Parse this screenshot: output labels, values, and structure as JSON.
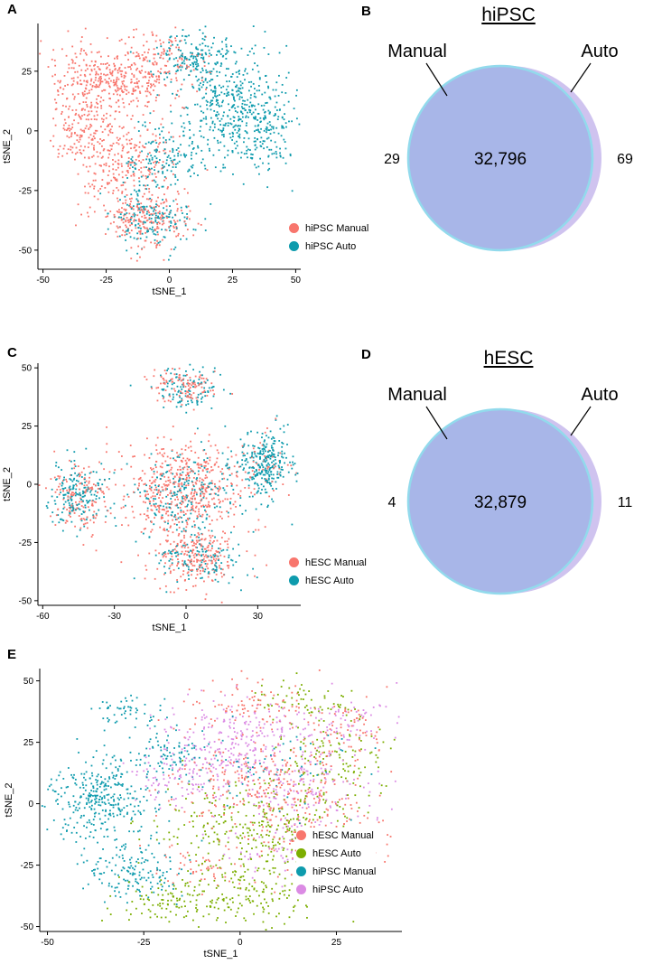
{
  "panels": {
    "a": {
      "label": "A"
    },
    "b": {
      "label": "B",
      "title": "hiPSC",
      "left_label": "Manual",
      "right_label": "Auto",
      "left_value": "29",
      "center_value": "32,796",
      "right_value": "69",
      "colors": {
        "front": "#A8B6E8",
        "front_stroke": "#92DAEC",
        "back": "#CFC3EF"
      }
    },
    "c": {
      "label": "C"
    },
    "d": {
      "label": "D",
      "title": "hESC",
      "left_label": "Manual",
      "right_label": "Auto",
      "left_value": "4",
      "center_value": "32,879",
      "right_value": "11",
      "colors": {
        "front": "#A8B6E8",
        "front_stroke": "#92DAEC",
        "back": "#CFC3EF"
      }
    },
    "e": {
      "label": "E"
    }
  },
  "chart_data": [
    {
      "panel": "A",
      "type": "scatter",
      "xlabel": "tSNE_1",
      "ylabel": "tSNE_2",
      "xlim": [
        -52,
        52
      ],
      "ylim": [
        -58,
        45
      ],
      "xticks": [
        -50,
        -25,
        0,
        25,
        50
      ],
      "yticks": [
        -50,
        -25,
        0,
        25
      ],
      "seed": 7,
      "legend_position": "right-bottom",
      "series": [
        {
          "name": "hiPSC Manual",
          "color": "#F8766D",
          "clusters": [
            {
              "cx": -20,
              "cy": 23,
              "sx": 12,
              "sy": 8,
              "n": 420
            },
            {
              "cx": -34,
              "cy": 2,
              "sx": 6,
              "sy": 8,
              "n": 200
            },
            {
              "cx": -12,
              "cy": -10,
              "sx": 8,
              "sy": 7,
              "n": 150
            },
            {
              "cx": -9,
              "cy": -36,
              "sx": 9,
              "sy": 6,
              "n": 240
            },
            {
              "cx": 2,
              "cy": 30,
              "sx": 7,
              "sy": 5,
              "n": 60
            },
            {
              "cx": -25,
              "cy": -20,
              "sx": 5,
              "sy": 5,
              "n": 60
            }
          ]
        },
        {
          "name": "hiPSC Auto",
          "color": "#0E9BAD",
          "clusters": [
            {
              "cx": 26,
              "cy": 10,
              "sx": 12,
              "sy": 11,
              "n": 500
            },
            {
              "cx": 9,
              "cy": 31,
              "sx": 8,
              "sy": 5,
              "n": 150
            },
            {
              "cx": -2,
              "cy": -12,
              "sx": 8,
              "sy": 7,
              "n": 140
            },
            {
              "cx": -6,
              "cy": -38,
              "sx": 9,
              "sy": 6,
              "n": 160
            },
            {
              "cx": 39,
              "cy": -5,
              "sx": 5,
              "sy": 7,
              "n": 70
            }
          ]
        }
      ]
    },
    {
      "panel": "B",
      "type": "venn",
      "title": "hiPSC",
      "sets": [
        "Manual",
        "Auto"
      ],
      "left_only": 29,
      "intersection": 32796,
      "right_only": 69
    },
    {
      "panel": "C",
      "type": "scatter",
      "xlabel": "tSNE_1",
      "ylabel": "tSNE_2",
      "xlim": [
        -62,
        48
      ],
      "ylim": [
        -52,
        52
      ],
      "xticks": [
        -60,
        -30,
        0,
        30
      ],
      "yticks": [
        -50,
        -25,
        0,
        25,
        50
      ],
      "seed": 13,
      "legend_position": "right-bottom",
      "series": [
        {
          "name": "hESC Manual",
          "color": "#F8766D",
          "clusters": [
            {
              "cx": -3,
              "cy": -2,
              "sx": 13,
              "sy": 10,
              "n": 500
            },
            {
              "cx": -44,
              "cy": -6,
              "sx": 6,
              "sy": 7,
              "n": 150
            },
            {
              "cx": -1,
              "cy": 42,
              "sx": 7,
              "sy": 4,
              "n": 110
            },
            {
              "cx": 5,
              "cy": -31,
              "sx": 10,
              "sy": 7,
              "n": 240
            },
            {
              "cx": 33,
              "cy": 8,
              "sx": 6,
              "sy": 6,
              "n": 50
            }
          ]
        },
        {
          "name": "hESC Auto",
          "color": "#0E9BAD",
          "clusters": [
            {
              "cx": 34,
              "cy": 9,
              "sx": 6,
              "sy": 7,
              "n": 280
            },
            {
              "cx": -46,
              "cy": -4,
              "sx": 6,
              "sy": 7,
              "n": 180
            },
            {
              "cx": 0,
              "cy": 41,
              "sx": 8,
              "sy": 5,
              "n": 110
            },
            {
              "cx": -1,
              "cy": -4,
              "sx": 12,
              "sy": 9,
              "n": 220
            },
            {
              "cx": 7,
              "cy": -33,
              "sx": 9,
              "sy": 6,
              "n": 130
            }
          ]
        }
      ]
    },
    {
      "panel": "D",
      "type": "venn",
      "title": "hESC",
      "sets": [
        "Manual",
        "Auto"
      ],
      "left_only": 4,
      "intersection": 32879,
      "right_only": 11
    },
    {
      "panel": "E",
      "type": "scatter",
      "xlabel": "tSNE_1",
      "ylabel": "tSNE_2",
      "xlim": [
        -52,
        42
      ],
      "ylim": [
        -52,
        55
      ],
      "xticks": [
        -50,
        -25,
        0,
        25
      ],
      "yticks": [
        -50,
        -25,
        0,
        25,
        50
      ],
      "seed": 21,
      "legend_position": "right-bottom",
      "series": [
        {
          "name": "hESC Manual",
          "color": "#F8766D",
          "clusters": [
            {
              "cx": 6,
              "cy": 8,
              "sx": 13,
              "sy": 10,
              "n": 260
            },
            {
              "cx": 22,
              "cy": -12,
              "sx": 9,
              "sy": 8,
              "n": 130
            },
            {
              "cx": 2,
              "cy": 40,
              "sx": 10,
              "sy": 6,
              "n": 90
            },
            {
              "cx": 28,
              "cy": 30,
              "sx": 7,
              "sy": 6,
              "n": 70
            },
            {
              "cx": -8,
              "cy": -25,
              "sx": 8,
              "sy": 6,
              "n": 70
            }
          ]
        },
        {
          "name": "hESC Auto",
          "color": "#7CAE00",
          "clusters": [
            {
              "cx": 4,
              "cy": -8,
              "sx": 13,
              "sy": 9,
              "n": 280
            },
            {
              "cx": -2,
              "cy": -36,
              "sx": 11,
              "sy": 7,
              "n": 200
            },
            {
              "cx": 24,
              "cy": 18,
              "sx": 8,
              "sy": 8,
              "n": 110
            },
            {
              "cx": 16,
              "cy": 42,
              "sx": 7,
              "sy": 4,
              "n": 60
            },
            {
              "cx": -20,
              "cy": -42,
              "sx": 6,
              "sy": 4,
              "n": 60
            }
          ]
        },
        {
          "name": "hiPSC Manual",
          "color": "#0E9BAD",
          "clusters": [
            {
              "cx": -36,
              "cy": 2,
              "sx": 7,
              "sy": 9,
              "n": 340
            },
            {
              "cx": -27,
              "cy": -28,
              "sx": 7,
              "sy": 6,
              "n": 150
            },
            {
              "cx": -18,
              "cy": 22,
              "sx": 6,
              "sy": 6,
              "n": 90
            },
            {
              "cx": -30,
              "cy": 38,
              "sx": 5,
              "sy": 4,
              "n": 50
            },
            {
              "cx": 8,
              "cy": 15,
              "sx": 12,
              "sy": 9,
              "n": 60
            }
          ]
        },
        {
          "name": "hiPSC Auto",
          "color": "#DB8BE4",
          "clusters": [
            {
              "cx": 0,
              "cy": 26,
              "sx": 12,
              "sy": 8,
              "n": 260
            },
            {
              "cx": 15,
              "cy": 6,
              "sx": 10,
              "sy": 8,
              "n": 150
            },
            {
              "cx": -12,
              "cy": 10,
              "sx": 8,
              "sy": 7,
              "n": 100
            },
            {
              "cx": 28,
              "cy": 33,
              "sx": 6,
              "sy": 5,
              "n": 60
            },
            {
              "cx": 12,
              "cy": -20,
              "sx": 8,
              "sy": 6,
              "n": 60
            }
          ]
        }
      ]
    }
  ]
}
